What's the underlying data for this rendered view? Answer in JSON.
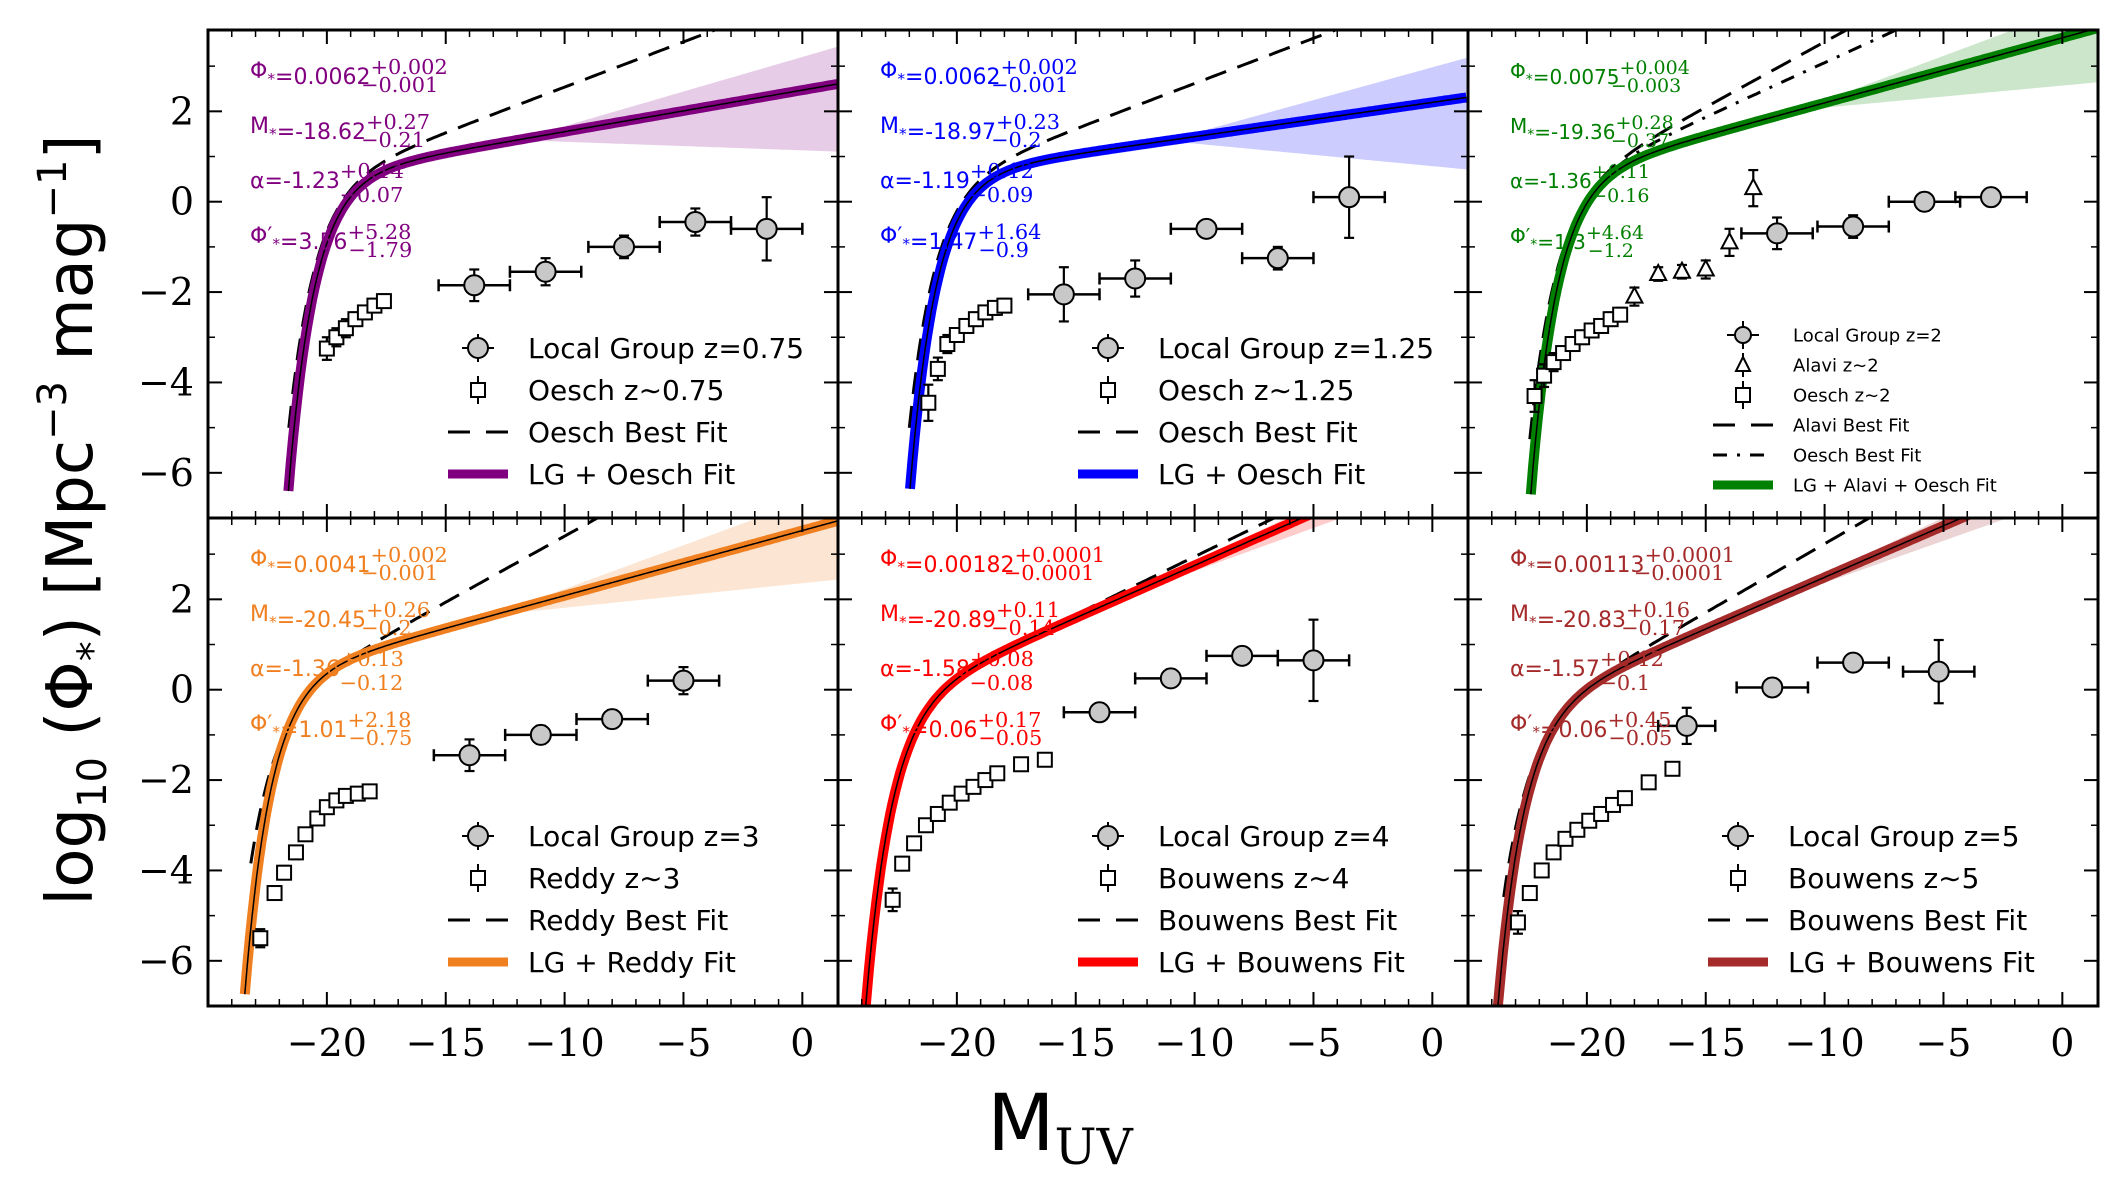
{
  "figure": {
    "ylabel_main": "log",
    "ylabel_sub": "10",
    "ylabel_rest": " (Φ",
    "ylabel_star": "*",
    "ylabel_tail": ") [Mpc",
    "ylabel_exp1": "−3",
    "ylabel_mid": " mag",
    "ylabel_exp2": "−1",
    "ylabel_end": "]",
    "xlabel_main": "M",
    "xlabel_sub": "UV"
  },
  "axes": {
    "xlim": [
      -25,
      1.5
    ],
    "ylim": [
      -7,
      3.8
    ],
    "xticks": [
      -20,
      -15,
      -10,
      -5,
      0
    ],
    "xtick_labels": [
      "−20",
      "−15",
      "−10",
      "−5",
      "0"
    ],
    "yticks": [
      -6,
      -4,
      -2,
      0,
      2
    ],
    "ytick_labels": [
      "−6",
      "−4",
      "−2",
      "0",
      "2"
    ]
  },
  "chart_data": [
    {
      "type": "line",
      "title": "z=0.75",
      "color": "#800080",
      "params": {
        "phi": {
          "label": "Φ",
          "sub": "*",
          "eq": "=0.0062",
          "up": "+0.002",
          "dn": "−0.001"
        },
        "mstar": {
          "label": "M",
          "sub": "*",
          "eq": "=-18.62",
          "up": "+0.27",
          "dn": "−0.21"
        },
        "alpha": {
          "label": "α",
          "sub": "",
          "eq": "=-1.23",
          "up": "+0.14",
          "dn": "−0.07"
        },
        "phip": {
          "label": "Φ′",
          "sub": "*",
          "eq": "=3.56",
          "up": "+5.28",
          "dn": "−1.79"
        }
      },
      "fit": {
        "phi": 0.0062,
        "mstar": -18.62,
        "alpha": -1.23,
        "band_lo": [
          -0.4,
          1.5
        ],
        "band_hi": [
          -0.1,
          -0.2
        ]
      },
      "best_fit": {
        "style": "dash",
        "phi": 0.0062,
        "mstar": -18.9,
        "alpha": -1.5,
        "x_start": -21.6
      },
      "lg_points": {
        "x": [
          -13.8,
          -10.8,
          -7.5,
          -4.5,
          -1.5
        ],
        "y": [
          -1.85,
          -1.55,
          -1.0,
          -0.45,
          -0.6
        ],
        "xerr": [
          1.5,
          1.5,
          1.5,
          1.5,
          1.5
        ],
        "yerr": [
          0.35,
          0.3,
          0.25,
          0.3,
          0.7
        ]
      },
      "obs_points": {
        "marker": "square",
        "x": [
          -20.0,
          -19.6,
          -19.2,
          -18.8,
          -18.4,
          -18.0,
          -17.6
        ],
        "y": [
          -3.25,
          -3.0,
          -2.8,
          -2.6,
          -2.45,
          -2.3,
          -2.2
        ],
        "yerr": [
          0.25,
          0.2,
          0.2,
          0.15,
          0.15,
          0.15,
          0.15
        ]
      },
      "legend": [
        {
          "type": "circle",
          "label": "Local Group z=0.75"
        },
        {
          "type": "square",
          "label": "Oesch z∼0.75"
        },
        {
          "type": "dash",
          "label": "Oesch Best Fit"
        },
        {
          "type": "line",
          "label": "LG + Oesch Fit"
        }
      ]
    },
    {
      "type": "line",
      "title": "z=1.25",
      "color": "#0000ff",
      "params": {
        "phi": {
          "label": "Φ",
          "sub": "*",
          "eq": "=0.0062",
          "up": "+0.002",
          "dn": "−0.001"
        },
        "mstar": {
          "label": "M",
          "sub": "*",
          "eq": "=-18.97",
          "up": "+0.23",
          "dn": "−0.2"
        },
        "alpha": {
          "label": "α",
          "sub": "",
          "eq": "=-1.19",
          "up": "+0.12",
          "dn": "−0.09"
        },
        "phip": {
          "label": "Φ′",
          "sub": "*",
          "eq": "=1.47",
          "up": "+1.64",
          "dn": "−0.9"
        }
      },
      "fit": {
        "phi": 0.0062,
        "mstar": -18.97,
        "alpha": -1.19,
        "band_lo": [
          -0.6,
          1.6
        ],
        "band_hi": [
          -0.1,
          -0.3
        ]
      },
      "best_fit": {
        "style": "dash",
        "phi": 0.0062,
        "mstar": -19.3,
        "alpha": -1.5,
        "x_start": -22.0
      },
      "lg_points": {
        "x": [
          -15.5,
          -12.5,
          -9.5,
          -6.5,
          -3.5
        ],
        "y": [
          -2.05,
          -1.7,
          -0.6,
          -1.25,
          0.1
        ],
        "xerr": [
          1.5,
          1.5,
          1.5,
          1.5,
          1.5
        ],
        "yerr": [
          0.6,
          0.4,
          0.15,
          0.25,
          0.9
        ]
      },
      "obs_points": {
        "marker": "square",
        "x": [
          -21.2,
          -20.8,
          -20.4,
          -20.0,
          -19.6,
          -19.2,
          -18.8,
          -18.4,
          -18.0
        ],
        "y": [
          -4.45,
          -3.7,
          -3.15,
          -2.95,
          -2.75,
          -2.6,
          -2.45,
          -2.35,
          -2.3
        ],
        "yerr": [
          0.4,
          0.25,
          0.2,
          0.15,
          0.15,
          0.15,
          0.15,
          0.15,
          0.15
        ]
      },
      "legend": [
        {
          "type": "circle",
          "label": "Local Group z=1.25"
        },
        {
          "type": "square",
          "label": "Oesch z∼1.25"
        },
        {
          "type": "dash",
          "label": "Oesch Best Fit"
        },
        {
          "type": "line",
          "label": "LG + Oesch Fit"
        }
      ]
    },
    {
      "type": "line",
      "title": "z=2",
      "color": "#008000",
      "params": {
        "phi": {
          "label": "Φ",
          "sub": "*",
          "eq": "=0.0075",
          "up": "+0.004",
          "dn": "−0.003"
        },
        "mstar": {
          "label": "M",
          "sub": "*",
          "eq": "=-19.36",
          "up": "+0.28",
          "dn": "−0.37"
        },
        "alpha": {
          "label": "α",
          "sub": "",
          "eq": "=-1.36",
          "up": "+0.11",
          "dn": "−0.16"
        },
        "phip": {
          "label": "Φ′",
          "sub": "*",
          "eq": "=1.3",
          "up": "+4.64",
          "dn": "−1.2"
        }
      },
      "fit": {
        "phi": 0.0075,
        "mstar": -19.36,
        "alpha": -1.36,
        "band_lo": [
          -0.5,
          1.2
        ],
        "band_hi": [
          -0.1,
          -0.3
        ]
      },
      "best_fit": {
        "style": "dash",
        "phi": 0.006,
        "mstar": -19.7,
        "alpha": -1.72,
        "x_start": -22.4
      },
      "best_fit2": {
        "style": "dashdot",
        "phi": 0.0068,
        "mstar": -19.5,
        "alpha": -1.6,
        "x_start": -22.4
      },
      "lg_points": {
        "x": [
          -12.0,
          -8.8,
          -5.8,
          -3.0
        ],
        "y": [
          -0.7,
          -0.55,
          0.0,
          0.1
        ],
        "xerr": [
          1.5,
          1.5,
          1.5,
          1.5
        ],
        "yerr": [
          0.35,
          0.25,
          0.2,
          0.2
        ]
      },
      "obs_points": {
        "marker": "square",
        "x": [
          -22.2,
          -21.8,
          -21.4,
          -21.0,
          -20.6,
          -20.2,
          -19.8,
          -19.4,
          -19.0,
          -18.6
        ],
        "y": [
          -4.3,
          -3.85,
          -3.55,
          -3.35,
          -3.15,
          -3.0,
          -2.85,
          -2.75,
          -2.6,
          -2.5
        ],
        "yerr": [
          0.35,
          0.25,
          0.2,
          0.15,
          0.15,
          0.15,
          0.15,
          0.15,
          0.15,
          0.15
        ]
      },
      "tri_points": {
        "marker": "triangle",
        "x": [
          -18.0,
          -17.0,
          -16.0,
          -15.0,
          -14.0,
          -13.0
        ],
        "y": [
          -2.1,
          -1.6,
          -1.55,
          -1.5,
          -0.9,
          0.3
        ],
        "yerr": [
          0.2,
          0.15,
          0.15,
          0.2,
          0.3,
          0.4
        ]
      },
      "legend": [
        {
          "type": "circle",
          "label": "Local Group z=2"
        },
        {
          "type": "triangle",
          "label": "Alavi z∼2"
        },
        {
          "type": "square",
          "label": "Oesch z∼2"
        },
        {
          "type": "dash",
          "label": "Alavi Best Fit"
        },
        {
          "type": "dashdot",
          "label": "Oesch Best Fit"
        },
        {
          "type": "line",
          "label": "LG + Alavi + Oesch Fit"
        }
      ]
    },
    {
      "type": "line",
      "title": "z=3",
      "color": "#f07f20",
      "params": {
        "phi": {
          "label": "Φ",
          "sub": "*",
          "eq": "=0.0041",
          "up": "+0.002",
          "dn": "−0.001"
        },
        "mstar": {
          "label": "M",
          "sub": "*",
          "eq": "=-20.45",
          "up": "+0.26",
          "dn": "−0.2"
        },
        "alpha": {
          "label": "α",
          "sub": "",
          "eq": "=-1.36",
          "up": "+0.13",
          "dn": "−0.12"
        },
        "phip": {
          "label": "Φ′",
          "sub": "*",
          "eq": "=1.01",
          "up": "+2.18",
          "dn": "−0.75"
        }
      },
      "fit": {
        "phi": 0.0041,
        "mstar": -20.45,
        "alpha": -1.36,
        "band_lo": [
          -0.4,
          1.3
        ],
        "band_hi": [
          -0.1,
          -0.2
        ]
      },
      "best_fit": {
        "style": "dash",
        "phi": 0.0017,
        "mstar": -20.97,
        "alpha": -1.73,
        "x_start": -23.2
      },
      "lg_points": {
        "x": [
          -14.0,
          -11.0,
          -8.0,
          -5.0
        ],
        "y": [
          -1.45,
          -1.0,
          -0.65,
          0.2
        ],
        "xerr": [
          1.5,
          1.5,
          1.5,
          1.5
        ],
        "yerr": [
          0.35,
          0.2,
          0.2,
          0.3
        ]
      },
      "obs_points": {
        "marker": "square",
        "x": [
          -22.8,
          -22.2,
          -21.8,
          -21.3,
          -20.9,
          -20.4,
          -20.0,
          -19.6,
          -19.2,
          -18.7,
          -18.2
        ],
        "y": [
          -5.5,
          -4.5,
          -4.05,
          -3.6,
          -3.2,
          -2.85,
          -2.6,
          -2.45,
          -2.35,
          -2.3,
          -2.25
        ],
        "yerr": [
          0.2,
          0.15,
          0.15,
          0.15,
          0.12,
          0.12,
          0.12,
          0.12,
          0.12,
          0.12,
          0.12
        ]
      },
      "legend": [
        {
          "type": "circle",
          "label": "Local Group z=3"
        },
        {
          "type": "square",
          "label": "Reddy z∼3"
        },
        {
          "type": "dash",
          "label": "Reddy Best Fit"
        },
        {
          "type": "line",
          "label": "LG + Reddy Fit"
        }
      ]
    },
    {
      "type": "line",
      "title": "z=4",
      "color": "#ff0000",
      "params": {
        "phi": {
          "label": "Φ",
          "sub": "*",
          "eq": "=0.00182",
          "up": "+0.0001",
          "dn": "−0.0001"
        },
        "mstar": {
          "label": "M",
          "sub": "*",
          "eq": "=-20.89",
          "up": "+0.11",
          "dn": "−0.14"
        },
        "alpha": {
          "label": "α",
          "sub": "",
          "eq": "=-1.58",
          "up": "+0.08",
          "dn": "−0.08"
        },
        "phip": {
          "label": "Φ′",
          "sub": "*",
          "eq": "=0.06",
          "up": "+0.17",
          "dn": "−0.05"
        }
      },
      "fit": {
        "phi": 0.00182,
        "mstar": -20.89,
        "alpha": -1.58,
        "band_lo": [
          -0.2,
          0.6
        ],
        "band_hi": [
          -0.05,
          -0.2
        ]
      },
      "best_fit": {
        "style": "dash",
        "phi": 0.0014,
        "mstar": -21.07,
        "alpha": -1.64,
        "x_start": -23.5
      },
      "lg_points": {
        "x": [
          -14.0,
          -11.0,
          -8.0,
          -5.0
        ],
        "y": [
          -0.5,
          0.25,
          0.75,
          0.65
        ],
        "xerr": [
          1.5,
          1.5,
          1.5,
          1.5
        ],
        "yerr": [
          0.15,
          0.15,
          0.15,
          0.9
        ]
      },
      "obs_points": {
        "marker": "square",
        "x": [
          -22.7,
          -22.3,
          -21.8,
          -21.3,
          -20.8,
          -20.3,
          -19.8,
          -19.3,
          -18.8,
          -18.3,
          -17.3,
          -16.3
        ],
        "y": [
          -4.65,
          -3.85,
          -3.4,
          -3.0,
          -2.75,
          -2.5,
          -2.3,
          -2.15,
          -2.0,
          -1.85,
          -1.65,
          -1.55
        ],
        "yerr": [
          0.25,
          0.15,
          0.12,
          0.1,
          0.1,
          0.1,
          0.1,
          0.1,
          0.1,
          0.1,
          0.1,
          0.12
        ]
      },
      "legend": [
        {
          "type": "circle",
          "label": "Local Group z=4"
        },
        {
          "type": "square",
          "label": "Bouwens z∼4"
        },
        {
          "type": "dash",
          "label": "Bouwens Best Fit"
        },
        {
          "type": "line",
          "label": "LG + Bouwens Fit"
        }
      ]
    },
    {
      "type": "line",
      "title": "z=5",
      "color": "#a52a2a",
      "params": {
        "phi": {
          "label": "Φ",
          "sub": "*",
          "eq": "=0.00113",
          "up": "+0.0001",
          "dn": "−0.0001"
        },
        "mstar": {
          "label": "M",
          "sub": "*",
          "eq": "=-20.83",
          "up": "+0.16",
          "dn": "−0.17"
        },
        "alpha": {
          "label": "α",
          "sub": "",
          "eq": "=-1.57",
          "up": "+0.12",
          "dn": "−0.1"
        },
        "phip": {
          "label": "Φ′",
          "sub": "*",
          "eq": "=0.06",
          "up": "+0.45",
          "dn": "−0.05"
        }
      },
      "fit": {
        "phi": 0.00113,
        "mstar": -20.83,
        "alpha": -1.57,
        "band_lo": [
          -0.2,
          0.6
        ],
        "band_hi": [
          -0.05,
          -0.2
        ]
      },
      "best_fit": {
        "style": "dash",
        "phi": 0.00074,
        "mstar": -21.17,
        "alpha": -1.76,
        "x_start": -23.5
      },
      "lg_points": {
        "x": [
          -15.8,
          -12.2,
          -8.8,
          -5.2
        ],
        "y": [
          -0.8,
          0.05,
          0.6,
          0.4
        ],
        "xerr": [
          1.2,
          1.5,
          1.5,
          1.5
        ],
        "yerr": [
          0.4,
          0.2,
          0.15,
          0.7
        ]
      },
      "obs_points": {
        "marker": "square",
        "x": [
          -22.9,
          -22.4,
          -21.9,
          -21.4,
          -20.9,
          -20.4,
          -19.9,
          -19.4,
          -18.9,
          -18.4,
          -17.4,
          -16.4
        ],
        "y": [
          -5.15,
          -4.5,
          -4.0,
          -3.6,
          -3.3,
          -3.1,
          -2.9,
          -2.75,
          -2.55,
          -2.4,
          -2.05,
          -1.75
        ],
        "yerr": [
          0.25,
          0.15,
          0.12,
          0.12,
          0.1,
          0.1,
          0.1,
          0.1,
          0.1,
          0.1,
          0.1,
          0.12
        ]
      },
      "legend": [
        {
          "type": "circle",
          "label": "Local Group z=5"
        },
        {
          "type": "square",
          "label": "Bouwens z∼5"
        },
        {
          "type": "dash",
          "label": "Bouwens Best Fit"
        },
        {
          "type": "line",
          "label": "LG + Bouwens Fit"
        }
      ]
    }
  ]
}
